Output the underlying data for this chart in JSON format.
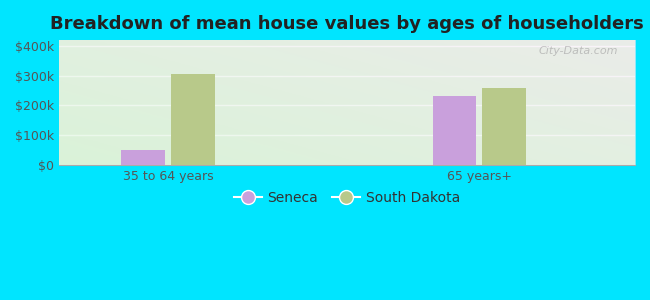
{
  "title": "Breakdown of mean house values by ages of householders",
  "categories": [
    "35 to 64 years",
    "65 years+"
  ],
  "series": {
    "Seneca": [
      50000,
      232000
    ],
    "South Dakota": [
      305000,
      260000
    ]
  },
  "seneca_color": "#c9a0dc",
  "sd_color": "#b8c98a",
  "background_color": "#00e5ff",
  "ylim": [
    0,
    420000
  ],
  "yticks": [
    0,
    100000,
    200000,
    300000,
    400000
  ],
  "ytick_labels": [
    "$0",
    "$100k",
    "$200k",
    "$300k",
    "$400k"
  ],
  "bar_width": 0.28,
  "title_fontsize": 13,
  "tick_fontsize": 9,
  "legend_fontsize": 10
}
